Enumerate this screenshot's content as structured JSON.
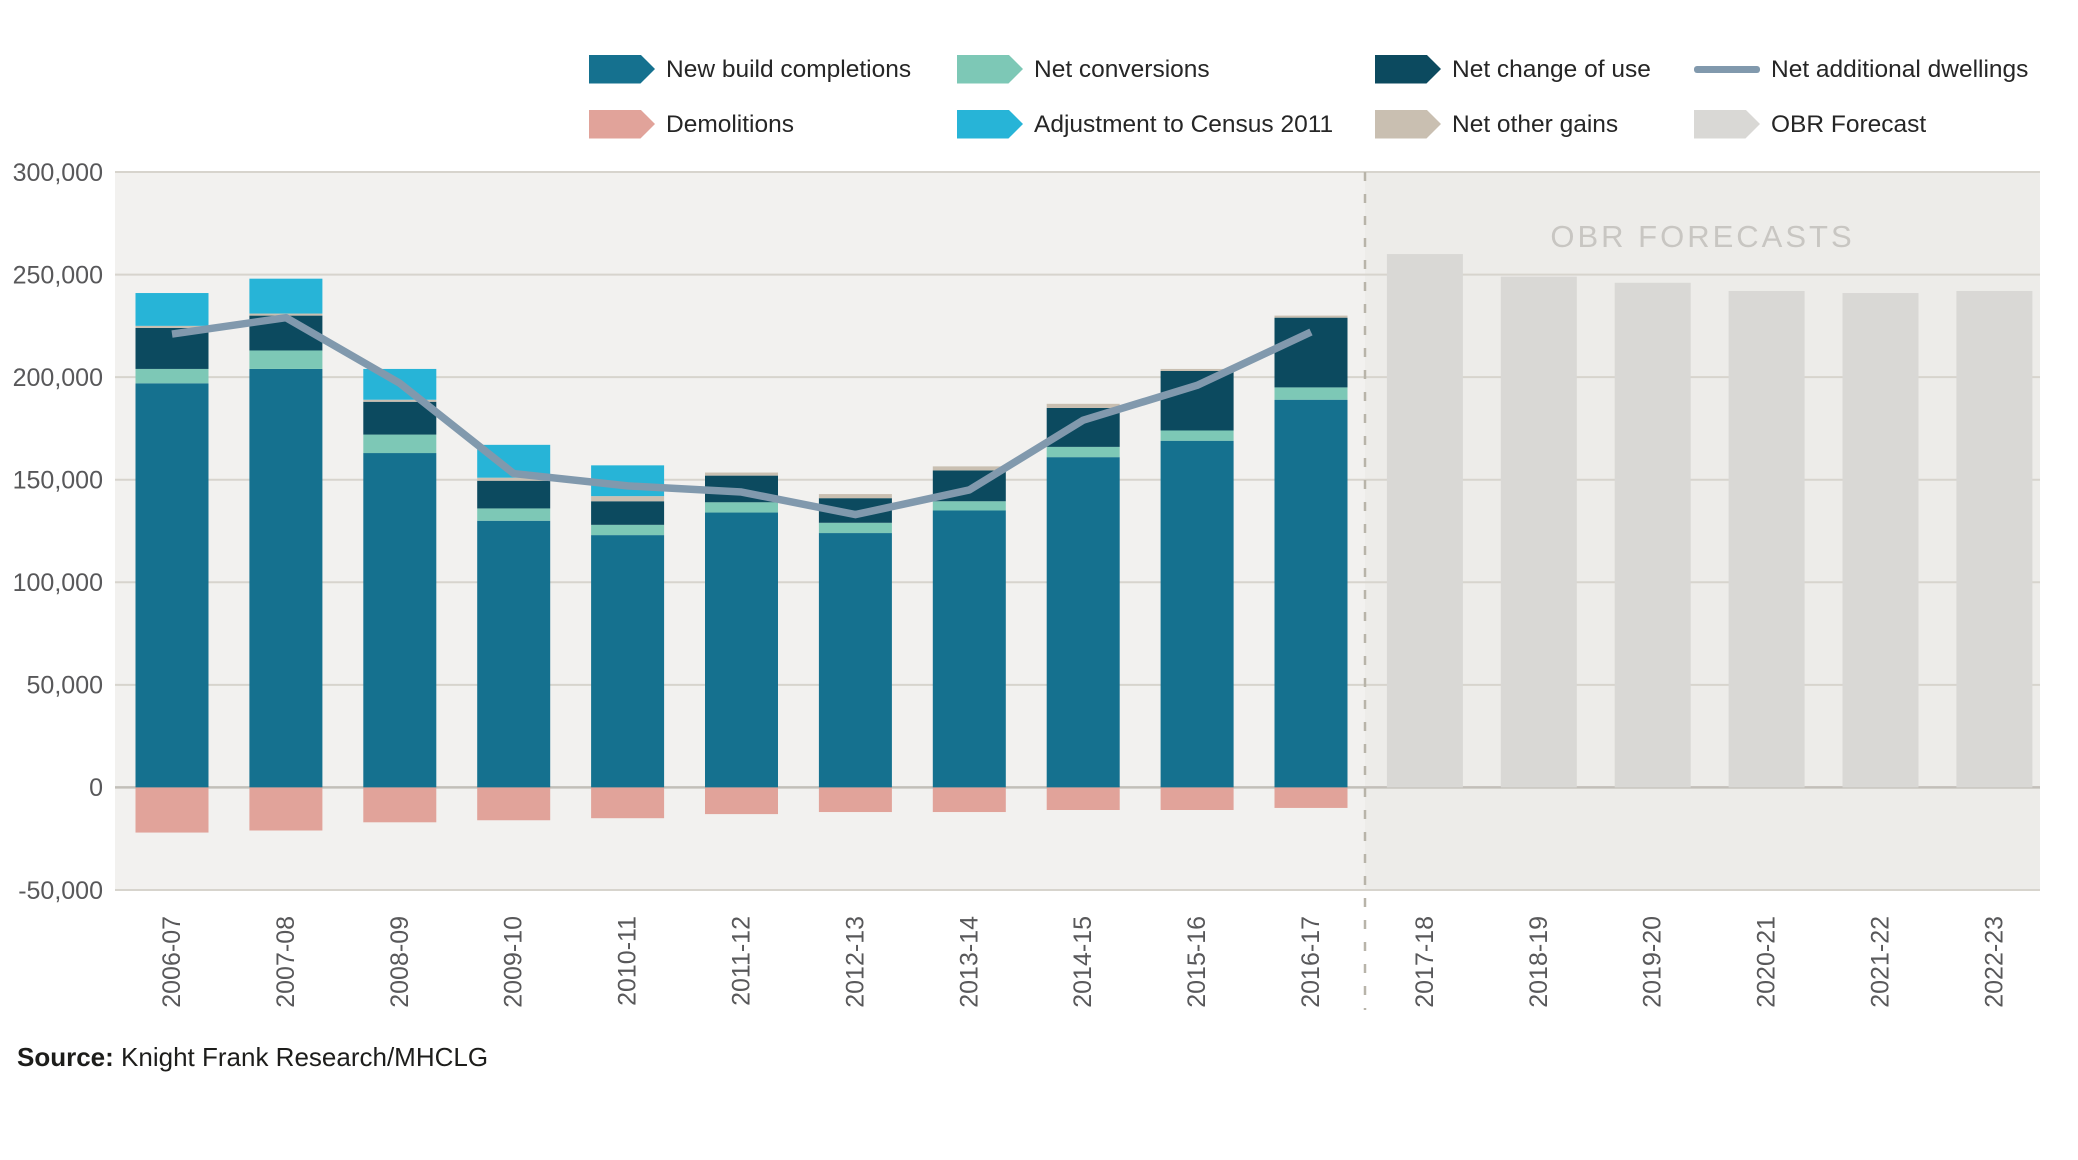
{
  "legend": {
    "items": [
      {
        "label": "New build completions",
        "color": "#15718f",
        "shape": "arrow",
        "row": 0,
        "col": 0
      },
      {
        "label": "Net conversions",
        "color": "#7dc8b6",
        "shape": "arrow",
        "row": 0,
        "col": 1
      },
      {
        "label": "Net change of use",
        "color": "#0c4a5f",
        "shape": "arrow",
        "row": 0,
        "col": 2
      },
      {
        "label": "Net additional dwellings",
        "color": "#8199ad",
        "shape": "line",
        "row": 0,
        "col": 3
      },
      {
        "label": "Demolitions",
        "color": "#e1a39a",
        "shape": "arrow",
        "row": 1,
        "col": 0
      },
      {
        "label": "Adjustment to Census 2011",
        "color": "#27b4d7",
        "shape": "arrow",
        "row": 1,
        "col": 1
      },
      {
        "label": "Net other gains",
        "color": "#c9bfb1",
        "shape": "arrow",
        "row": 1,
        "col": 2
      },
      {
        "label": "OBR Forecast",
        "color": "#d9d8d5",
        "shape": "arrow",
        "row": 1,
        "col": 3
      }
    ]
  },
  "annotations": {
    "obr_title": "OBR FORECASTS"
  },
  "source": {
    "label": "Source:",
    "text": " Knight Frank Research/MHCLG"
  },
  "colors": {
    "plot_bg_history": "#f2f1ef",
    "plot_bg_forecast": "#edece9",
    "gridline": "#d7d4cd",
    "zero_line": "#c2bfb9",
    "axis_text": "#58585a",
    "obr_text": "#c8c6c2",
    "divider": "#b8b4a9",
    "line": "#8199ad"
  },
  "chart_data": {
    "type": "bar",
    "subtype": "stacked-bar-with-line",
    "categories": [
      "2006-07",
      "2007-08",
      "2008-09",
      "2009-10",
      "2010-11",
      "2011-12",
      "2012-13",
      "2013-14",
      "2014-15",
      "2015-16",
      "2016-17",
      "2017-18",
      "2018-19",
      "2019-20",
      "2020-21",
      "2021-22",
      "2022-23"
    ],
    "forecast_start_index": 11,
    "series": [
      {
        "name": "New build completions",
        "color": "#15718f",
        "values": [
          197000,
          204000,
          163000,
          130000,
          123000,
          134000,
          124000,
          135000,
          161000,
          169000,
          189000,
          0,
          0,
          0,
          0,
          0,
          0
        ]
      },
      {
        "name": "Net conversions",
        "color": "#7dc8b6",
        "values": [
          7000,
          9000,
          9000,
          6000,
          5000,
          5000,
          5000,
          4500,
          5000,
          5000,
          6000,
          0,
          0,
          0,
          0,
          0,
          0
        ]
      },
      {
        "name": "Net change of use",
        "color": "#0c4a5f",
        "values": [
          20000,
          17000,
          16000,
          13500,
          11500,
          13000,
          12000,
          15000,
          19000,
          29000,
          34000,
          0,
          0,
          0,
          0,
          0,
          0
        ]
      },
      {
        "name": "Net other gains",
        "color": "#c9bfb1",
        "values": [
          1000,
          1000,
          1000,
          1500,
          2500,
          1500,
          2000,
          2000,
          2000,
          1000,
          1000,
          0,
          0,
          0,
          0,
          0,
          0
        ]
      },
      {
        "name": "Adjustment to Census 2011",
        "color": "#27b4d7",
        "values": [
          16000,
          17000,
          15000,
          16000,
          15000,
          0,
          0,
          0,
          0,
          0,
          0,
          0,
          0,
          0,
          0,
          0,
          0
        ]
      },
      {
        "name": "OBR Forecast",
        "color": "#d9d8d5",
        "values": [
          0,
          0,
          0,
          0,
          0,
          0,
          0,
          0,
          0,
          0,
          0,
          260000,
          249000,
          246000,
          242000,
          241000,
          242000
        ]
      },
      {
        "name": "Demolitions",
        "color": "#e1a39a",
        "values": [
          -22000,
          -21000,
          -17000,
          -16000,
          -15000,
          -13000,
          -12000,
          -12000,
          -11000,
          -11000,
          -10000,
          0,
          0,
          0,
          0,
          0,
          0
        ]
      }
    ],
    "line": {
      "name": "Net additional dwellings",
      "color": "#8199ad",
      "values": [
        221000,
        229000,
        197000,
        153000,
        147000,
        144000,
        133000,
        145000,
        179000,
        196000,
        222000,
        null,
        null,
        null,
        null,
        null,
        null
      ]
    },
    "title": "",
    "xlabel": "",
    "ylabel": "",
    "ylim": [
      -50000,
      300000
    ],
    "ytick_step": 50000,
    "grid": true,
    "legend_position": "top"
  }
}
